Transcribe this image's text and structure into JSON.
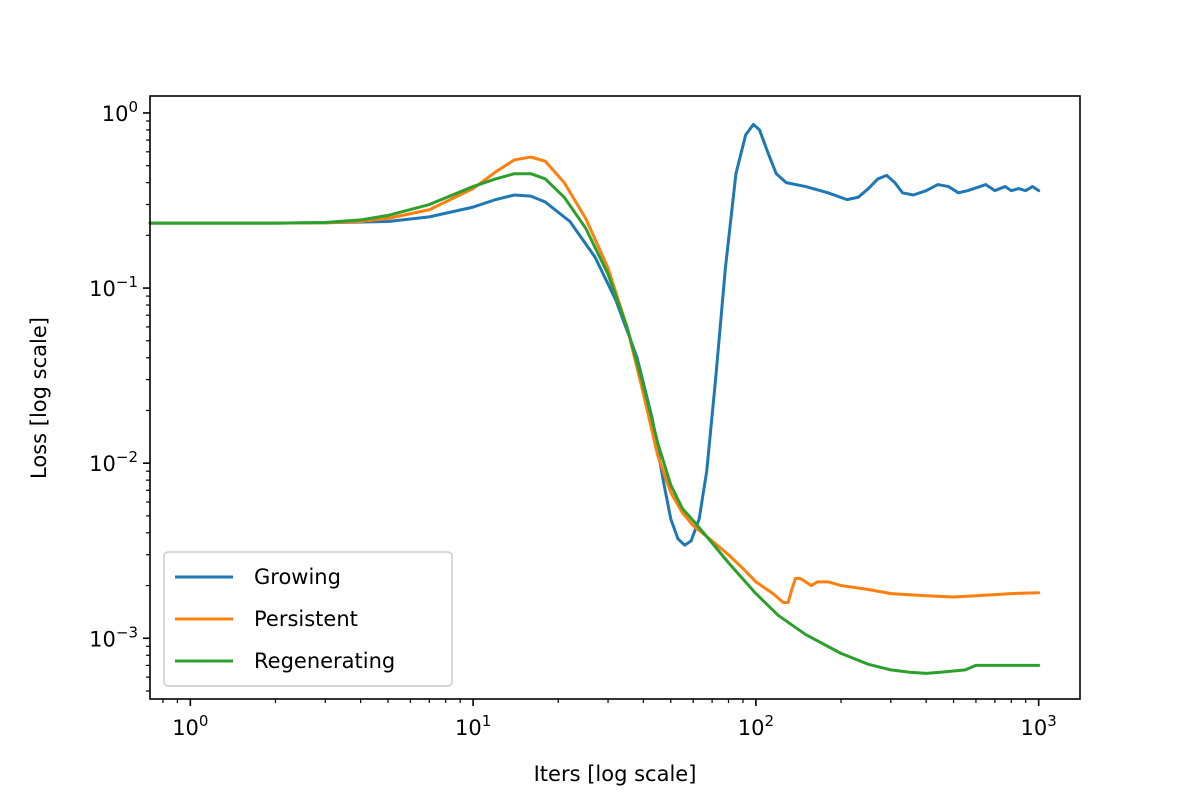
{
  "chart_data": {
    "type": "line",
    "title": "",
    "xlabel": "Iters [log scale]",
    "ylabel": "Loss [log scale]",
    "xscale": "log",
    "yscale": "log",
    "xlim": [
      0.72,
      1400
    ],
    "ylim": [
      0.00045,
      1.25
    ],
    "xticks": [
      {
        "base": "10",
        "exp": "0"
      },
      {
        "base": "10",
        "exp": "1"
      },
      {
        "base": "10",
        "exp": "2"
      },
      {
        "base": "10",
        "exp": "3"
      }
    ],
    "yticks": [
      {
        "base": "10",
        "exp": "0"
      },
      {
        "base": "10",
        "exp": "−1"
      },
      {
        "base": "10",
        "exp": "−2"
      },
      {
        "base": "10",
        "exp": "−3"
      }
    ],
    "grid": false,
    "legend_position": "lower-left",
    "series": [
      {
        "name": "Growing",
        "color": "#1f77b4",
        "points": [
          [
            0.72,
            0.235
          ],
          [
            1,
            0.235
          ],
          [
            2,
            0.235
          ],
          [
            3,
            0.236
          ],
          [
            5,
            0.24
          ],
          [
            7,
            0.255
          ],
          [
            10,
            0.29
          ],
          [
            12,
            0.32
          ],
          [
            14,
            0.34
          ],
          [
            16,
            0.335
          ],
          [
            18,
            0.31
          ],
          [
            22,
            0.24
          ],
          [
            27,
            0.15
          ],
          [
            32,
            0.085
          ],
          [
            38,
            0.04
          ],
          [
            43,
            0.018
          ],
          [
            47,
            0.008
          ],
          [
            50,
            0.0048
          ],
          [
            53,
            0.0037
          ],
          [
            56,
            0.0034
          ],
          [
            59,
            0.0036
          ],
          [
            63,
            0.0048
          ],
          [
            67,
            0.009
          ],
          [
            72,
            0.03
          ],
          [
            78,
            0.13
          ],
          [
            85,
            0.45
          ],
          [
            92,
            0.75
          ],
          [
            98,
            0.86
          ],
          [
            103,
            0.8
          ],
          [
            110,
            0.6
          ],
          [
            118,
            0.45
          ],
          [
            128,
            0.4
          ],
          [
            150,
            0.38
          ],
          [
            180,
            0.35
          ],
          [
            210,
            0.32
          ],
          [
            230,
            0.33
          ],
          [
            250,
            0.37
          ],
          [
            270,
            0.42
          ],
          [
            290,
            0.44
          ],
          [
            310,
            0.4
          ],
          [
            330,
            0.35
          ],
          [
            360,
            0.34
          ],
          [
            400,
            0.36
          ],
          [
            440,
            0.39
          ],
          [
            480,
            0.38
          ],
          [
            520,
            0.35
          ],
          [
            560,
            0.36
          ],
          [
            620,
            0.38
          ],
          [
            650,
            0.39
          ],
          [
            700,
            0.36
          ],
          [
            760,
            0.38
          ],
          [
            800,
            0.36
          ],
          [
            850,
            0.37
          ],
          [
            900,
            0.36
          ],
          [
            950,
            0.38
          ],
          [
            1000,
            0.36
          ]
        ]
      },
      {
        "name": "Persistent",
        "color": "#ff7f0e",
        "points": [
          [
            0.72,
            0.235
          ],
          [
            1,
            0.235
          ],
          [
            2,
            0.235
          ],
          [
            3,
            0.236
          ],
          [
            4,
            0.24
          ],
          [
            5,
            0.25
          ],
          [
            7,
            0.28
          ],
          [
            10,
            0.37
          ],
          [
            12,
            0.46
          ],
          [
            14,
            0.54
          ],
          [
            16,
            0.56
          ],
          [
            18,
            0.53
          ],
          [
            21,
            0.4
          ],
          [
            25,
            0.25
          ],
          [
            30,
            0.13
          ],
          [
            35,
            0.06
          ],
          [
            40,
            0.025
          ],
          [
            45,
            0.011
          ],
          [
            50,
            0.0068
          ],
          [
            55,
            0.0052
          ],
          [
            60,
            0.0044
          ],
          [
            70,
            0.0036
          ],
          [
            80,
            0.003
          ],
          [
            90,
            0.0025
          ],
          [
            100,
            0.0021
          ],
          [
            115,
            0.0018
          ],
          [
            125,
            0.0016
          ],
          [
            130,
            0.0016
          ],
          [
            134,
            0.0019
          ],
          [
            138,
            0.0022
          ],
          [
            143,
            0.0022
          ],
          [
            150,
            0.0021
          ],
          [
            157,
            0.002
          ],
          [
            165,
            0.0021
          ],
          [
            180,
            0.0021
          ],
          [
            200,
            0.002
          ],
          [
            250,
            0.0019
          ],
          [
            300,
            0.0018
          ],
          [
            400,
            0.00175
          ],
          [
            500,
            0.00172
          ],
          [
            600,
            0.00175
          ],
          [
            800,
            0.0018
          ],
          [
            1000,
            0.00182
          ]
        ]
      },
      {
        "name": "Regenerating",
        "color": "#2ca02c",
        "points": [
          [
            0.72,
            0.235
          ],
          [
            1,
            0.235
          ],
          [
            2,
            0.235
          ],
          [
            3,
            0.237
          ],
          [
            4,
            0.245
          ],
          [
            5,
            0.26
          ],
          [
            7,
            0.3
          ],
          [
            10,
            0.38
          ],
          [
            12,
            0.42
          ],
          [
            14,
            0.45
          ],
          [
            16,
            0.45
          ],
          [
            18,
            0.42
          ],
          [
            21,
            0.33
          ],
          [
            25,
            0.22
          ],
          [
            30,
            0.12
          ],
          [
            35,
            0.06
          ],
          [
            40,
            0.028
          ],
          [
            45,
            0.013
          ],
          [
            50,
            0.0075
          ],
          [
            55,
            0.0055
          ],
          [
            60,
            0.0047
          ],
          [
            70,
            0.0035
          ],
          [
            80,
            0.0027
          ],
          [
            100,
            0.0018
          ],
          [
            120,
            0.00135
          ],
          [
            150,
            0.00105
          ],
          [
            200,
            0.00082
          ],
          [
            250,
            0.00071
          ],
          [
            300,
            0.00066
          ],
          [
            350,
            0.00064
          ],
          [
            400,
            0.00063
          ],
          [
            450,
            0.00064
          ],
          [
            500,
            0.00065
          ],
          [
            550,
            0.00066
          ],
          [
            600,
            0.0007
          ],
          [
            700,
            0.0007
          ],
          [
            800,
            0.0007
          ],
          [
            1000,
            0.0007
          ]
        ]
      }
    ]
  }
}
